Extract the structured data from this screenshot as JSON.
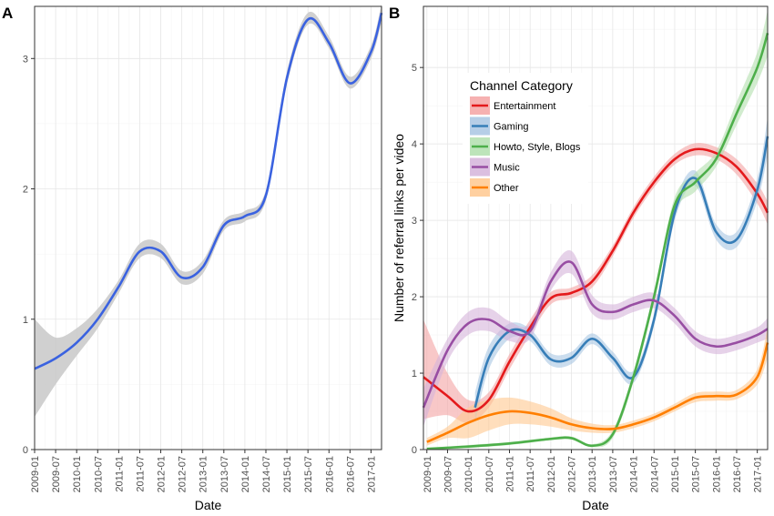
{
  "chart_data": [
    {
      "panel_label": "A",
      "type": "line",
      "xlabel": "Date",
      "ylabel": "",
      "x_tick_labels": [
        "2009-01",
        "2009-07",
        "2010-01",
        "2010-07",
        "2011-01",
        "2011-07",
        "2012-01",
        "2012-07",
        "2013-01",
        "2013-07",
        "2014-01",
        "2014-07",
        "2015-01",
        "2015-07",
        "2016-01",
        "2016-07",
        "2017-01"
      ],
      "y_tick_labels": [
        "0",
        "1",
        "2",
        "3"
      ],
      "ylim": [
        0,
        3.4
      ],
      "xlim": [
        "2009-01",
        "2017-04"
      ],
      "grid": true,
      "series": [
        {
          "color": "#3a62e0",
          "band_color": "#c8c8c8",
          "x": [
            "2009-01",
            "2009-07",
            "2010-01",
            "2010-07",
            "2011-01",
            "2011-07",
            "2012-01",
            "2012-07",
            "2013-01",
            "2013-07",
            "2014-01",
            "2014-07",
            "2015-01",
            "2015-07",
            "2016-01",
            "2016-07",
            "2017-01",
            "2017-04"
          ],
          "y": [
            0.62,
            0.7,
            0.82,
            1.0,
            1.25,
            1.52,
            1.52,
            1.32,
            1.4,
            1.72,
            1.79,
            1.95,
            2.85,
            3.3,
            3.12,
            2.81,
            3.05,
            3.35
          ],
          "lower": [
            0.25,
            0.5,
            0.72,
            0.93,
            1.2,
            1.47,
            1.47,
            1.27,
            1.35,
            1.68,
            1.75,
            1.91,
            2.8,
            3.26,
            3.08,
            2.77,
            3.0,
            3.28
          ],
          "upper": [
            1.0,
            0.86,
            0.93,
            1.08,
            1.3,
            1.58,
            1.58,
            1.37,
            1.45,
            1.76,
            1.83,
            1.99,
            2.9,
            3.35,
            3.17,
            2.86,
            3.1,
            3.42
          ]
        }
      ]
    },
    {
      "panel_label": "B",
      "type": "line",
      "xlabel": "Date",
      "ylabel": "Number of referral links per video",
      "x_tick_labels": [
        "2009-01",
        "2009-07",
        "2010-01",
        "2010-07",
        "2011-01",
        "2011-07",
        "2012-01",
        "2012-07",
        "2013-01",
        "2013-07",
        "2014-01",
        "2014-07",
        "2015-01",
        "2015-07",
        "2016-01",
        "2016-07",
        "2017-01"
      ],
      "y_tick_labels": [
        "0",
        "1",
        "2",
        "3",
        "4",
        "5"
      ],
      "ylim": [
        0,
        5.8
      ],
      "xlim": [
        "2008-12",
        "2017-04"
      ],
      "grid": true,
      "legend": {
        "title": "Channel Category",
        "position": "top-left"
      },
      "series": [
        {
          "name": "Entertainment",
          "color": "#e41a1c",
          "band_color": "#f4a3a3",
          "x": [
            "2008-12",
            "2009-07",
            "2010-01",
            "2010-07",
            "2011-01",
            "2011-07",
            "2012-01",
            "2012-07",
            "2013-01",
            "2013-07",
            "2014-01",
            "2014-07",
            "2015-01",
            "2015-07",
            "2016-01",
            "2016-07",
            "2017-01",
            "2017-04"
          ],
          "y": [
            0.95,
            0.7,
            0.5,
            0.65,
            1.15,
            1.6,
            1.98,
            2.05,
            2.2,
            2.6,
            3.1,
            3.5,
            3.8,
            3.93,
            3.88,
            3.7,
            3.35,
            3.1
          ],
          "lower": [
            0.4,
            0.45,
            0.35,
            0.55,
            1.05,
            1.5,
            1.9,
            1.98,
            2.12,
            2.53,
            3.03,
            3.43,
            3.73,
            3.85,
            3.8,
            3.6,
            3.22,
            2.95
          ],
          "upper": [
            1.7,
            1.0,
            0.65,
            0.75,
            1.25,
            1.7,
            2.06,
            2.12,
            2.28,
            2.67,
            3.17,
            3.57,
            3.87,
            4.01,
            3.96,
            3.8,
            3.48,
            3.25
          ]
        },
        {
          "name": "Gaming",
          "color": "#377eb8",
          "band_color": "#a9c6e3",
          "x": [
            "2010-03",
            "2010-07",
            "2011-01",
            "2011-07",
            "2012-01",
            "2012-07",
            "2013-01",
            "2013-07",
            "2014-01",
            "2014-07",
            "2015-01",
            "2015-07",
            "2016-01",
            "2016-07",
            "2017-01",
            "2017-04"
          ],
          "y": [
            0.55,
            1.2,
            1.55,
            1.5,
            1.18,
            1.2,
            1.45,
            1.2,
            0.95,
            1.7,
            3.1,
            3.55,
            2.85,
            2.75,
            3.4,
            4.1
          ],
          "lower": [
            0.35,
            1.05,
            1.45,
            1.42,
            1.1,
            1.12,
            1.38,
            1.12,
            0.87,
            1.62,
            3.0,
            3.45,
            2.75,
            2.65,
            3.25,
            3.85
          ],
          "upper": [
            0.75,
            1.35,
            1.65,
            1.58,
            1.26,
            1.28,
            1.52,
            1.28,
            1.03,
            1.78,
            3.2,
            3.65,
            2.95,
            2.85,
            3.55,
            4.35
          ]
        },
        {
          "name": "Howto, Style, Blogs",
          "color": "#4daf4a",
          "band_color": "#b2dfae",
          "x": [
            "2009-01",
            "2010-01",
            "2011-01",
            "2012-01",
            "2012-07",
            "2013-01",
            "2013-07",
            "2014-01",
            "2014-07",
            "2015-01",
            "2015-07",
            "2016-01",
            "2016-07",
            "2017-01",
            "2017-04"
          ],
          "y": [
            0.01,
            0.04,
            0.08,
            0.14,
            0.15,
            0.05,
            0.2,
            0.95,
            2.0,
            3.2,
            3.5,
            3.8,
            4.4,
            5.0,
            5.45
          ],
          "lower": [
            0.0,
            0.02,
            0.06,
            0.12,
            0.13,
            0.03,
            0.15,
            0.88,
            1.92,
            3.1,
            3.38,
            3.7,
            4.25,
            4.8,
            5.15
          ],
          "upper": [
            0.02,
            0.06,
            0.1,
            0.16,
            0.17,
            0.07,
            0.25,
            1.02,
            2.08,
            3.3,
            3.62,
            3.9,
            4.55,
            5.2,
            5.75
          ]
        },
        {
          "name": "Music",
          "color": "#984ea3",
          "band_color": "#d5b4da",
          "x": [
            "2008-12",
            "2009-07",
            "2010-01",
            "2010-07",
            "2011-01",
            "2011-07",
            "2012-01",
            "2012-07",
            "2013-01",
            "2013-07",
            "2014-01",
            "2014-07",
            "2015-01",
            "2015-07",
            "2016-01",
            "2016-07",
            "2017-01",
            "2017-04"
          ],
          "y": [
            0.55,
            1.3,
            1.65,
            1.7,
            1.55,
            1.55,
            2.2,
            2.45,
            1.9,
            1.8,
            1.9,
            1.95,
            1.75,
            1.45,
            1.35,
            1.4,
            1.5,
            1.58
          ],
          "lower": [
            0.3,
            1.15,
            1.5,
            1.55,
            1.42,
            1.45,
            2.08,
            2.3,
            1.78,
            1.7,
            1.8,
            1.85,
            1.65,
            1.35,
            1.25,
            1.3,
            1.4,
            1.45
          ],
          "upper": [
            0.8,
            1.45,
            1.8,
            1.85,
            1.68,
            1.65,
            2.32,
            2.6,
            2.02,
            1.9,
            2.0,
            2.05,
            1.85,
            1.55,
            1.45,
            1.5,
            1.6,
            1.72
          ]
        },
        {
          "name": "Other",
          "color": "#ff7f00",
          "band_color": "#ffc88f",
          "x": [
            "2009-01",
            "2009-07",
            "2010-01",
            "2010-07",
            "2011-01",
            "2011-07",
            "2012-01",
            "2012-07",
            "2013-01",
            "2013-07",
            "2014-01",
            "2014-07",
            "2015-01",
            "2015-07",
            "2016-01",
            "2016-07",
            "2017-01",
            "2017-04"
          ],
          "y": [
            0.1,
            0.22,
            0.35,
            0.45,
            0.5,
            0.48,
            0.42,
            0.33,
            0.28,
            0.27,
            0.33,
            0.42,
            0.55,
            0.68,
            0.7,
            0.72,
            0.95,
            1.4
          ],
          "lower": [
            0.05,
            0.15,
            0.15,
            0.25,
            0.33,
            0.33,
            0.3,
            0.25,
            0.22,
            0.22,
            0.28,
            0.37,
            0.5,
            0.62,
            0.64,
            0.66,
            0.85,
            1.2
          ],
          "upper": [
            0.15,
            0.3,
            0.55,
            0.65,
            0.68,
            0.63,
            0.54,
            0.41,
            0.34,
            0.32,
            0.38,
            0.47,
            0.6,
            0.74,
            0.76,
            0.78,
            1.05,
            1.6
          ]
        }
      ]
    }
  ]
}
